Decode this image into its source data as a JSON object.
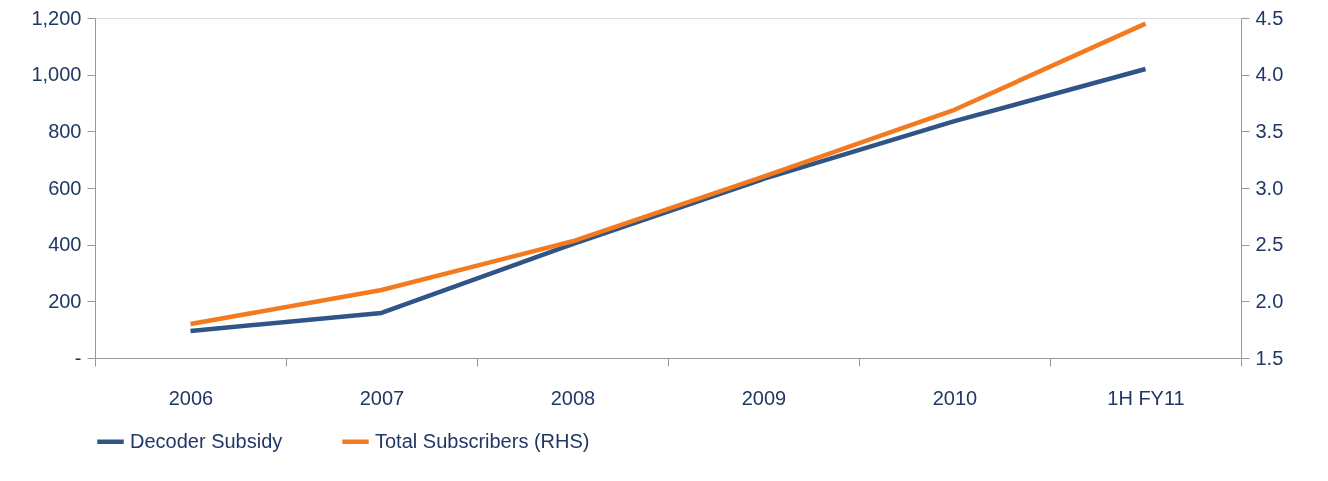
{
  "chart_data": {
    "type": "line",
    "categories": [
      "2006",
      "2007",
      "2008",
      "2009",
      "2010",
      "1H FY11"
    ],
    "series": [
      {
        "name": "Decoder Subsidy",
        "color": "#2f5587",
        "values": [
          95,
          159,
          402,
          632,
          836,
          1020
        ]
      },
      {
        "name": "Total Subscribers (RHS)",
        "color": "#f47a20",
        "axis": "y2",
        "values": [
          1.8,
          2.1,
          2.53,
          3.1,
          3.69,
          4.45
        ]
      }
    ],
    "ylim": [
      0,
      1200
    ],
    "yticks": [
      {
        "value": 0,
        "label": "-"
      },
      {
        "value": 200,
        "label": "200"
      },
      {
        "value": 400,
        "label": "400"
      },
      {
        "value": 600,
        "label": "600"
      },
      {
        "value": 800,
        "label": "800"
      },
      {
        "value": 1000,
        "label": "1,000"
      },
      {
        "value": 1200,
        "label": "1,200"
      }
    ],
    "y2lim": [
      1.5,
      4.5
    ],
    "y2ticks": [
      {
        "value": 1.5,
        "label": "1.5"
      },
      {
        "value": 2.0,
        "label": "2.0"
      },
      {
        "value": 2.5,
        "label": "2.5"
      },
      {
        "value": 3.0,
        "label": "3.0"
      },
      {
        "value": 3.5,
        "label": "3.5"
      },
      {
        "value": 4.0,
        "label": "4.0"
      },
      {
        "value": 4.5,
        "label": "4.5"
      }
    ],
    "grid": false,
    "legend": "bottom",
    "marker": "none",
    "line_style": "solid"
  }
}
